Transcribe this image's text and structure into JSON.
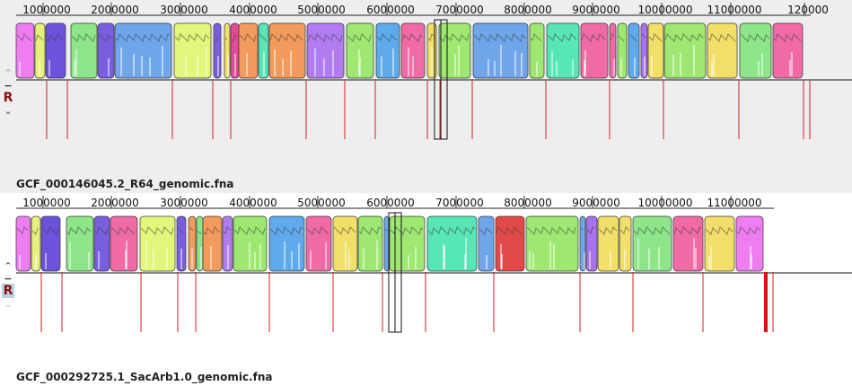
{
  "tracks": [
    {
      "id": "top",
      "genome_label": "GCF_000146045.2_R64_genomic.fna",
      "ruler_ticks": [
        "1000000",
        "2000000",
        "3000000",
        "4000000",
        "5000000",
        "6000000",
        "7000000",
        "8000000",
        "9000000",
        "10000000",
        "11000000",
        "120000"
      ],
      "controls": {
        "up": "⌃",
        "minus": "−",
        "r": "R",
        "down": "⌄"
      },
      "block_colors": [
        "#ee7ef0",
        "#e6f07a",
        "#6e52dd",
        "#8ee58a",
        "#7a5ee0",
        "#6fa6ea",
        "#e3f57a",
        "#7a5ee0",
        "#f2df6a",
        "#e24a9a",
        "#f29b5c",
        "#57e6b7",
        "#f29b5c",
        "#b17cf2",
        "#9ee871",
        "#5eaaec",
        "#f06ba6",
        "#f2df6a",
        "#9ee871",
        "#6fa6ea",
        "#9ee871",
        "#57e6b7",
        "#f06ba6",
        "#f06ba6",
        "#9ee871",
        "#5eaaec",
        "#a872f0",
        "#f2df6a",
        "#9ee871",
        "#f2df6a",
        "#8ee58a",
        "#f06ba6",
        "#f2df6a"
      ]
    },
    {
      "id": "bottom",
      "genome_label": "GCF_000292725.1_SacArb1.0_genomic.fna",
      "ruler_ticks": [
        "1000000",
        "2000000",
        "3000000",
        "4000000",
        "5000000",
        "6000000",
        "7000000",
        "8000000",
        "9000000",
        "10000000",
        "11000000"
      ],
      "controls": {
        "up": "⌃",
        "minus": "−",
        "r": "R",
        "down": "⌄"
      },
      "block_colors": [
        "#ee7ef0",
        "#e6f07a",
        "#6e52dd",
        "#8ee58a",
        "#7a5ee0",
        "#f06ba6",
        "#e3f57a",
        "#7a5ee0",
        "#f29b5c",
        "#8ee58a",
        "#f29b5c",
        "#b17cf2",
        "#9ee871",
        "#5eaaec",
        "#f06ba6",
        "#f2df6a",
        "#9ee871",
        "#6fa6ea",
        "#9ee871",
        "#57e6b7",
        "#6fa6ea",
        "#e24a4a",
        "#9ee871",
        "#6fa6ea",
        "#a872f0",
        "#f2df6a",
        "#f2df6a",
        "#8ee58a",
        "#f06ba6",
        "#f2df6a"
      ]
    }
  ]
}
